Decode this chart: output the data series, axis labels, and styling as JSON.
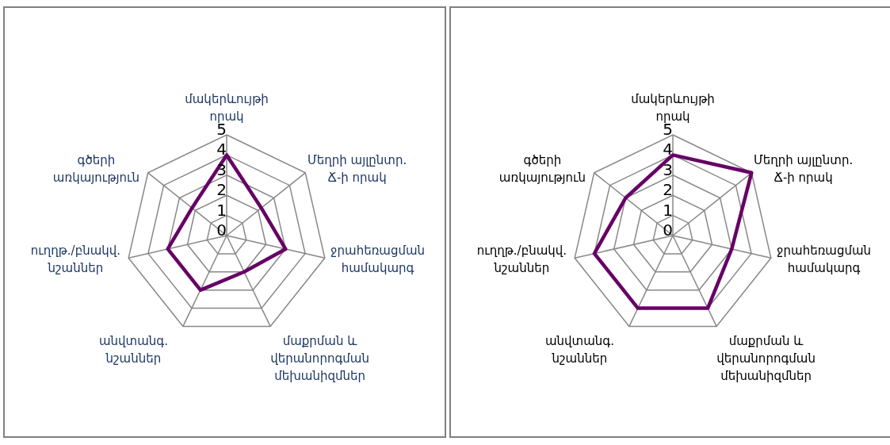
{
  "chart_data": [
    {
      "type": "radar",
      "categories": [
        "մակերևույթի որակ",
        "Մեղրի այլընտր. Ճ-ի որակ",
        "ջրահեռացման համակարգ",
        "մաքրման և վերանորոգման մեխանիզմներ",
        "անվտանգ. նշաններ",
        "ուղղթ./բնակվ. նշաններ",
        "գծերի առկայություն"
      ],
      "series": [
        {
          "color": "#660066",
          "values": [
            4,
            2.2,
            3,
            2,
            3,
            3,
            2.2
          ]
        }
      ],
      "ylim": [
        0,
        5
      ],
      "yticks": [
        0,
        1,
        2,
        3,
        4,
        5
      ],
      "grid": true
    },
    {
      "type": "radar",
      "categories": [
        "մակերևույթի որակ",
        "Մեղրի այլընտր. Ճ-ի որակ",
        "ջրահեռացման համակարգ",
        "մաքրման և վերանորոգման մեխանիզմներ",
        "անվտանգ. նշաններ",
        "ուղղթ./բնակվ. նշաններ",
        "գծերի առկայություն"
      ],
      "series": [
        {
          "color": "#660066",
          "values": [
            4,
            5,
            3,
            4,
            4,
            4,
            3
          ]
        }
      ],
      "ylim": [
        0,
        5
      ],
      "yticks": [
        0,
        1,
        2,
        3,
        4,
        5
      ],
      "grid": true
    }
  ]
}
